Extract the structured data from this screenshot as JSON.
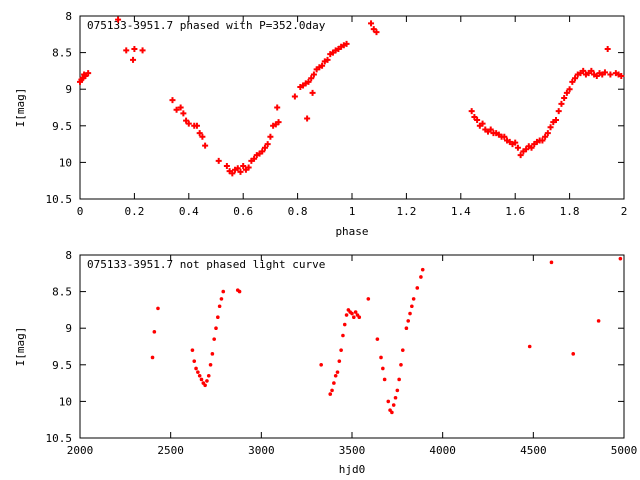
{
  "chart_data": [
    {
      "type": "scatter",
      "title": "075133-3951.7 phased with P=352.0day",
      "xlabel": "phase",
      "ylabel": "I[mag]",
      "xlim": [
        0,
        2
      ],
      "ylim": [
        8,
        10.5
      ],
      "y_inverted": true,
      "xticks": [
        "0",
        "0.2",
        "0.4",
        "0.6",
        "0.8",
        "1",
        "1.2",
        "1.4",
        "1.6",
        "1.8",
        "2"
      ],
      "yticks": [
        "8",
        "8.5",
        "9",
        "9.5",
        "10",
        "10.5"
      ],
      "color": "#ff0000",
      "marker": "plus",
      "points": [
        [
          0.0,
          8.9
        ],
        [
          0.01,
          8.85
        ],
        [
          0.015,
          8.8
        ],
        [
          0.02,
          8.82
        ],
        [
          0.03,
          8.78
        ],
        [
          0.005,
          8.87
        ],
        [
          0.14,
          8.05
        ],
        [
          0.17,
          8.47
        ],
        [
          0.2,
          8.45
        ],
        [
          0.195,
          8.6
        ],
        [
          0.23,
          8.47
        ],
        [
          0.34,
          9.15
        ],
        [
          0.355,
          9.28
        ],
        [
          0.37,
          9.25
        ],
        [
          0.38,
          9.33
        ],
        [
          0.39,
          9.43
        ],
        [
          0.4,
          9.47
        ],
        [
          0.42,
          9.5
        ],
        [
          0.43,
          9.5
        ],
        [
          0.44,
          9.6
        ],
        [
          0.45,
          9.65
        ],
        [
          0.46,
          9.77
        ],
        [
          0.51,
          9.98
        ],
        [
          0.54,
          10.05
        ],
        [
          0.55,
          10.12
        ],
        [
          0.56,
          10.15
        ],
        [
          0.57,
          10.1
        ],
        [
          0.58,
          10.08
        ],
        [
          0.59,
          10.13
        ],
        [
          0.6,
          10.05
        ],
        [
          0.61,
          10.1
        ],
        [
          0.62,
          10.07
        ],
        [
          0.63,
          9.98
        ],
        [
          0.64,
          9.95
        ],
        [
          0.65,
          9.9
        ],
        [
          0.66,
          9.88
        ],
        [
          0.67,
          9.85
        ],
        [
          0.68,
          9.8
        ],
        [
          0.69,
          9.75
        ],
        [
          0.7,
          9.65
        ],
        [
          0.71,
          9.5
        ],
        [
          0.72,
          9.48
        ],
        [
          0.73,
          9.45
        ],
        [
          0.725,
          9.25
        ],
        [
          0.79,
          9.1
        ],
        [
          0.81,
          8.97
        ],
        [
          0.82,
          8.95
        ],
        [
          0.83,
          8.92
        ],
        [
          0.835,
          9.4
        ],
        [
          0.84,
          8.9
        ],
        [
          0.85,
          8.85
        ],
        [
          0.855,
          9.05
        ],
        [
          0.86,
          8.8
        ],
        [
          0.87,
          8.73
        ],
        [
          0.88,
          8.7
        ],
        [
          0.89,
          8.68
        ],
        [
          0.9,
          8.62
        ],
        [
          0.91,
          8.6
        ],
        [
          0.92,
          8.52
        ],
        [
          0.93,
          8.5
        ],
        [
          0.94,
          8.47
        ],
        [
          0.95,
          8.45
        ],
        [
          0.96,
          8.42
        ],
        [
          0.97,
          8.4
        ],
        [
          0.98,
          8.38
        ],
        [
          1.07,
          8.1
        ],
        [
          1.08,
          8.18
        ],
        [
          1.09,
          8.22
        ],
        [
          1.44,
          9.3
        ],
        [
          1.45,
          9.38
        ],
        [
          1.46,
          9.42
        ],
        [
          1.47,
          9.5
        ],
        [
          1.48,
          9.47
        ],
        [
          1.49,
          9.55
        ],
        [
          1.5,
          9.58
        ],
        [
          1.51,
          9.55
        ],
        [
          1.52,
          9.6
        ],
        [
          1.53,
          9.6
        ],
        [
          1.54,
          9.62
        ],
        [
          1.55,
          9.65
        ],
        [
          1.56,
          9.65
        ],
        [
          1.57,
          9.7
        ],
        [
          1.58,
          9.72
        ],
        [
          1.59,
          9.75
        ],
        [
          1.6,
          9.73
        ],
        [
          1.61,
          9.8
        ],
        [
          1.62,
          9.9
        ],
        [
          1.63,
          9.85
        ],
        [
          1.64,
          9.82
        ],
        [
          1.65,
          9.78
        ],
        [
          1.66,
          9.8
        ],
        [
          1.67,
          9.75
        ],
        [
          1.68,
          9.72
        ],
        [
          1.69,
          9.7
        ],
        [
          1.7,
          9.7
        ],
        [
          1.71,
          9.65
        ],
        [
          1.72,
          9.6
        ],
        [
          1.73,
          9.52
        ],
        [
          1.74,
          9.45
        ],
        [
          1.75,
          9.42
        ],
        [
          1.76,
          9.3
        ],
        [
          1.77,
          9.2
        ],
        [
          1.78,
          9.12
        ],
        [
          1.79,
          9.05
        ],
        [
          1.8,
          9.0
        ],
        [
          1.81,
          8.9
        ],
        [
          1.82,
          8.85
        ],
        [
          1.83,
          8.8
        ],
        [
          1.84,
          8.78
        ],
        [
          1.85,
          8.75
        ],
        [
          1.86,
          8.8
        ],
        [
          1.87,
          8.78
        ],
        [
          1.88,
          8.75
        ],
        [
          1.89,
          8.8
        ],
        [
          1.9,
          8.82
        ],
        [
          1.91,
          8.78
        ],
        [
          1.92,
          8.8
        ],
        [
          1.93,
          8.77
        ],
        [
          1.94,
          8.45
        ],
        [
          1.95,
          8.8
        ],
        [
          1.97,
          8.78
        ],
        [
          1.98,
          8.8
        ],
        [
          1.99,
          8.82
        ]
      ]
    },
    {
      "type": "scatter",
      "title": "075133-3951.7 not phased light curve",
      "xlabel": "hjd0",
      "ylabel": "I[mag]",
      "xlim": [
        2000,
        5000
      ],
      "ylim": [
        8,
        10.5
      ],
      "y_inverted": true,
      "xticks": [
        "2000",
        "2500",
        "3000",
        "3500",
        "4000",
        "4500",
        "5000"
      ],
      "yticks": [
        "8",
        "8.5",
        "9",
        "9.5",
        "10",
        "10.5"
      ],
      "color": "#ff0000",
      "marker": "dot",
      "points": [
        [
          2400,
          9.4
        ],
        [
          2410,
          9.05
        ],
        [
          2430,
          8.73
        ],
        [
          2620,
          9.3
        ],
        [
          2630,
          9.45
        ],
        [
          2640,
          9.55
        ],
        [
          2650,
          9.6
        ],
        [
          2660,
          9.65
        ],
        [
          2670,
          9.7
        ],
        [
          2680,
          9.75
        ],
        [
          2690,
          9.78
        ],
        [
          2700,
          9.72
        ],
        [
          2710,
          9.65
        ],
        [
          2720,
          9.5
        ],
        [
          2730,
          9.35
        ],
        [
          2740,
          9.15
        ],
        [
          2750,
          9.0
        ],
        [
          2760,
          8.85
        ],
        [
          2770,
          8.7
        ],
        [
          2780,
          8.6
        ],
        [
          2790,
          8.5
        ],
        [
          2870,
          8.48
        ],
        [
          2880,
          8.5
        ],
        [
          3330,
          9.5
        ],
        [
          3380,
          9.9
        ],
        [
          3390,
          9.85
        ],
        [
          3400,
          9.75
        ],
        [
          3410,
          9.65
        ],
        [
          3420,
          9.6
        ],
        [
          3430,
          9.45
        ],
        [
          3440,
          9.3
        ],
        [
          3450,
          9.1
        ],
        [
          3460,
          8.95
        ],
        [
          3470,
          8.82
        ],
        [
          3480,
          8.75
        ],
        [
          3490,
          8.78
        ],
        [
          3500,
          8.8
        ],
        [
          3510,
          8.85
        ],
        [
          3520,
          8.78
        ],
        [
          3530,
          8.82
        ],
        [
          3540,
          8.85
        ],
        [
          3590,
          8.6
        ],
        [
          3640,
          9.15
        ],
        [
          3660,
          9.4
        ],
        [
          3670,
          9.55
        ],
        [
          3680,
          9.7
        ],
        [
          3700,
          10.0
        ],
        [
          3710,
          10.12
        ],
        [
          3720,
          10.15
        ],
        [
          3730,
          10.05
        ],
        [
          3740,
          9.95
        ],
        [
          3750,
          9.85
        ],
        [
          3760,
          9.7
        ],
        [
          3770,
          9.5
        ],
        [
          3780,
          9.3
        ],
        [
          3800,
          9.0
        ],
        [
          3810,
          8.9
        ],
        [
          3820,
          8.8
        ],
        [
          3830,
          8.7
        ],
        [
          3840,
          8.6
        ],
        [
          3860,
          8.45
        ],
        [
          3880,
          8.3
        ],
        [
          3890,
          8.2
        ],
        [
          4480,
          9.25
        ],
        [
          4600,
          8.1
        ],
        [
          4720,
          9.35
        ],
        [
          4860,
          8.9
        ],
        [
          4980,
          8.05
        ]
      ]
    }
  ]
}
